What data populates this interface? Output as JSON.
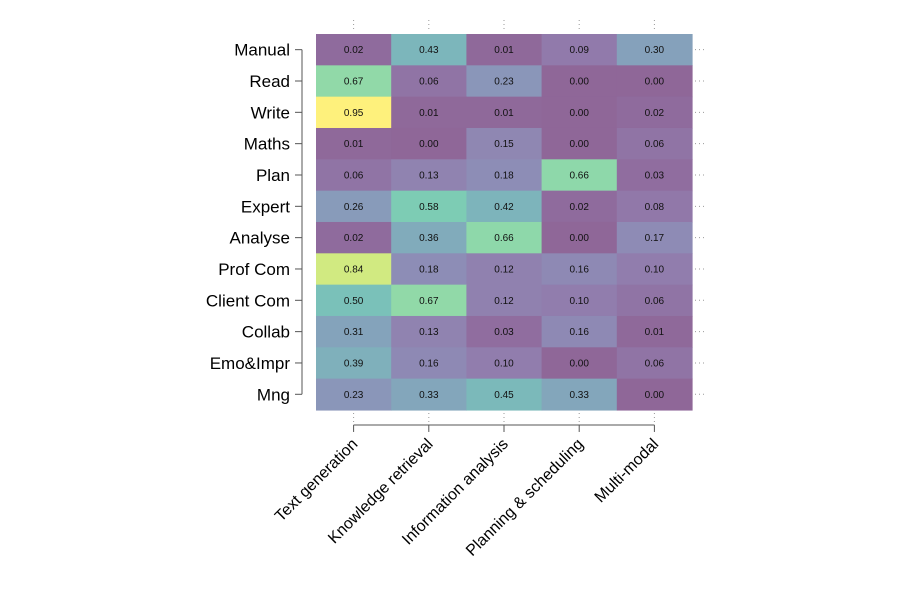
{
  "chart_data": {
    "type": "heatmap",
    "rows": [
      "Manual",
      "Read",
      "Write",
      "Maths",
      "Plan",
      "Expert",
      "Analyse",
      "Prof Com",
      "Client Com",
      "Collab",
      "Emo&Impr",
      "Mng"
    ],
    "columns": [
      "Text generation",
      "Knowledge retrieval",
      "Information analysis",
      "Planning & scheduling",
      "Multi-modal"
    ],
    "values": [
      [
        0.02,
        0.43,
        0.01,
        0.09,
        0.3
      ],
      [
        0.67,
        0.06,
        0.23,
        0.0,
        0.0
      ],
      [
        0.95,
        0.01,
        0.01,
        0.0,
        0.02
      ],
      [
        0.01,
        0.0,
        0.15,
        0.0,
        0.06
      ],
      [
        0.06,
        0.13,
        0.18,
        0.66,
        0.03
      ],
      [
        0.26,
        0.58,
        0.42,
        0.02,
        0.08
      ],
      [
        0.02,
        0.36,
        0.66,
        0.0,
        0.17
      ],
      [
        0.84,
        0.18,
        0.12,
        0.16,
        0.1
      ],
      [
        0.5,
        0.67,
        0.12,
        0.1,
        0.06
      ],
      [
        0.31,
        0.13,
        0.03,
        0.16,
        0.01
      ],
      [
        0.39,
        0.16,
        0.1,
        0.0,
        0.06
      ],
      [
        0.23,
        0.33,
        0.45,
        0.33,
        0.0
      ]
    ],
    "value_labels": [
      [
        "0.02",
        "0.43",
        "0.01",
        "0.09",
        "0.30"
      ],
      [
        "0.67",
        "0.06",
        "0.23",
        "0.00",
        "0.00"
      ],
      [
        "0.95",
        "0.01",
        "0.01",
        "0.00",
        "0.02"
      ],
      [
        "0.01",
        "0.00",
        "0.15",
        "0.00",
        "0.06"
      ],
      [
        "0.06",
        "0.13",
        "0.18",
        "0.66",
        "0.03"
      ],
      [
        "0.26",
        "0.58",
        "0.42",
        "0.02",
        "0.08"
      ],
      [
        "0.02",
        "0.36",
        "0.66",
        "0.00",
        "0.17"
      ],
      [
        "0.84",
        "0.18",
        "0.12",
        "0.16",
        "0.10"
      ],
      [
        "0.50",
        "0.67",
        "0.12",
        "0.10",
        "0.06"
      ],
      [
        "0.31",
        "0.13",
        "0.03",
        "0.16",
        "0.01"
      ],
      [
        "0.39",
        "0.16",
        "0.10",
        "0.00",
        "0.06"
      ],
      [
        "0.23",
        "0.33",
        "0.45",
        "0.33",
        "0.00"
      ]
    ],
    "color_range": [
      0,
      0.95
    ],
    "colormap": "viridis",
    "opacity": 0.6
  }
}
